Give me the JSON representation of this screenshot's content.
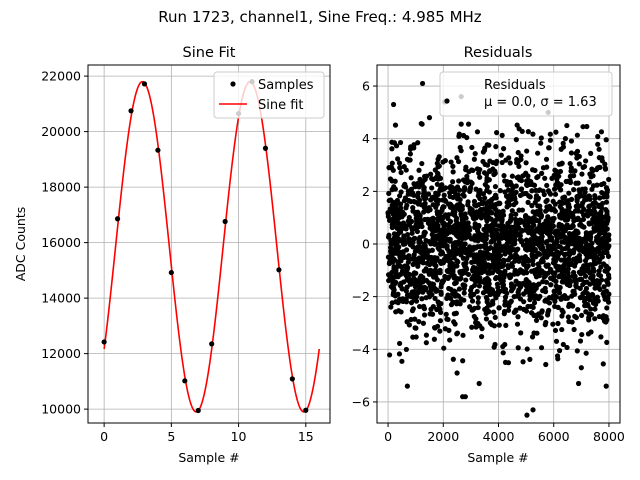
{
  "figure": {
    "suptitle": "Run 1723, channel1, Sine Freq.: 4.985 MHz"
  },
  "chart_data": [
    {
      "type": "line",
      "title": "Sine Fit",
      "xlabel": "Sample #",
      "ylabel": "ADC Counts",
      "xlim": [
        -1.2,
        16.8
      ],
      "ylim": [
        9500,
        22400
      ],
      "xticks": [
        0,
        5,
        10,
        15
      ],
      "yticks": [
        10000,
        12000,
        14000,
        16000,
        18000,
        20000,
        22000
      ],
      "grid": true,
      "legend": {
        "placement": "top-right",
        "entries": [
          "Samples",
          "Sine fit"
        ]
      },
      "series": [
        {
          "name": "Samples",
          "kind": "scatter",
          "color": "#000000",
          "x": [
            0,
            1,
            2,
            3,
            4,
            5,
            6,
            7,
            8,
            9,
            10,
            11,
            12,
            13,
            14,
            15
          ],
          "y": [
            12420,
            16860,
            20750,
            21720,
            19330,
            14920,
            11020,
            9950,
            12350,
            16760,
            20650,
            21800,
            19400,
            15020,
            11090,
            9960
          ]
        },
        {
          "name": "Sine fit",
          "kind": "line",
          "color": "#ff0000",
          "amplitude": 5950,
          "offset": 15850,
          "period": 8.0,
          "peak_x": 2.85,
          "x_range": [
            0,
            16
          ]
        }
      ]
    },
    {
      "type": "scatter",
      "title": "Residuals",
      "xlabel": "Sample #",
      "ylabel": "",
      "xlim": [
        -400,
        8400
      ],
      "ylim": [
        -6.8,
        6.8
      ],
      "xticks": [
        0,
        2000,
        4000,
        6000,
        8000
      ],
      "yticks": [
        -6,
        -4,
        -2,
        0,
        2,
        4,
        6
      ],
      "grid": true,
      "legend": {
        "placement": "top-right",
        "entries": [
          "Residuals"
        ],
        "stats": "μ = 0.0, σ = 1.63"
      },
      "series": [
        {
          "name": "Residuals",
          "color": "#000000",
          "n_points": 8000,
          "mean": 0.0,
          "sigma": 1.63,
          "x": [
            200,
            1250,
            2050,
            2650,
            1500,
            5030,
            5250,
            2700,
            2800,
            3300,
            700,
            6900,
            7900,
            7000,
            5800,
            2500
          ],
          "y": [
            5.3,
            6.1,
            5.4,
            5.6,
            4.8,
            -6.5,
            -6.3,
            -5.8,
            -5.8,
            -5.3,
            -5.4,
            -5.3,
            -5.4,
            -4.7,
            5.0,
            -4.9
          ]
        }
      ]
    }
  ]
}
